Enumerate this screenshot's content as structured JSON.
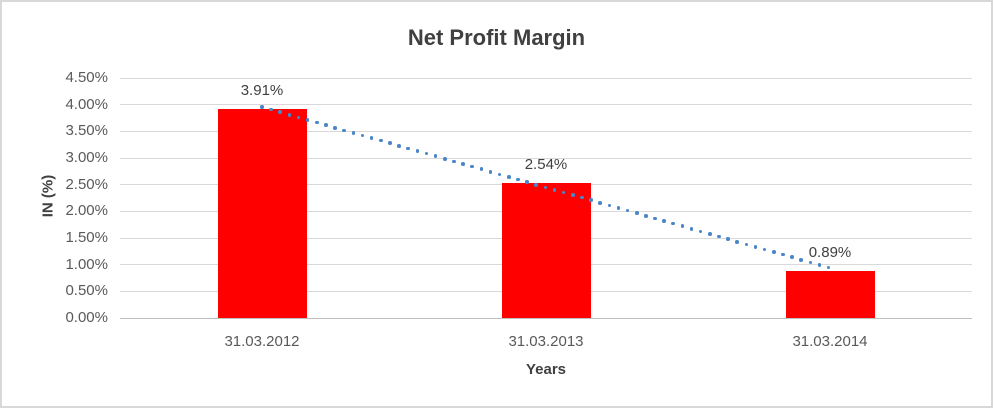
{
  "chart_data": {
    "type": "bar",
    "title": "Net Profit Margin",
    "xlabel": "Years",
    "ylabel": "IN (%)",
    "categories": [
      "31.03.2012",
      "31.03.2013",
      "31.03.2014"
    ],
    "values": [
      3.91,
      2.54,
      0.89
    ],
    "data_labels": [
      "3.91%",
      "2.54%",
      "0.89%"
    ],
    "ytick_values": [
      4.5,
      4.0,
      3.5,
      3.0,
      2.5,
      2.0,
      1.5,
      1.0,
      0.5,
      0.0
    ],
    "ytick_labels": [
      "4.50%",
      "4.00%",
      "3.50%",
      "3.00%",
      "2.50%",
      "2.00%",
      "1.50%",
      "1.00%",
      "0.50%",
      "0.00%"
    ],
    "ylim": [
      0,
      4.5
    ],
    "grid": true,
    "legend": "none",
    "trendline": {
      "type": "linear",
      "style": "dotted"
    }
  },
  "colors": {
    "bar": "#FF0000",
    "trendline": "#4A86C8",
    "title_text": "#404040",
    "tick_text": "#595959",
    "gridline": "#D9D9D9",
    "axis_line": "#BFBFBF",
    "border": "#D8D8D8",
    "background": "#FFFFFF"
  }
}
